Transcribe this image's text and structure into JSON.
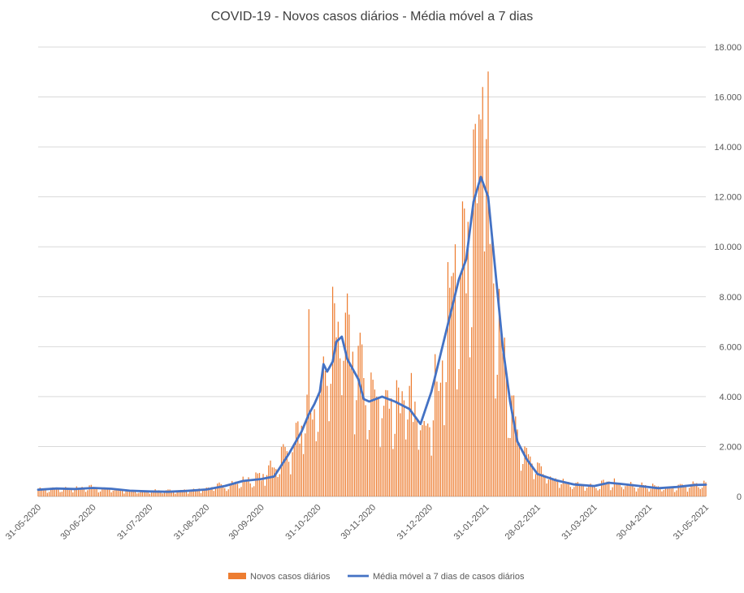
{
  "chart_data": {
    "type": "bar",
    "title": "COVID-19 - Novos casos diários - Média móvel a 7 dias",
    "xlabel": "",
    "ylabel": "",
    "ylim": [
      0,
      18000
    ],
    "y_ticks": [
      "0",
      "2.000",
      "4.000",
      "6.000",
      "8.000",
      "10.000",
      "12.000",
      "14.000",
      "16.000",
      "18.000"
    ],
    "y_axis_side": "right",
    "x_ticks": [
      "31-05-2020",
      "30-06-2020",
      "31-07-2020",
      "31-08-2020",
      "30-09-2020",
      "31-10-2020",
      "30-11-2020",
      "31-12-2020",
      "31-01-2021",
      "28-02-2021",
      "31-03-2021",
      "30-04-2021",
      "31-05-2021"
    ],
    "x_range": [
      "2020-05-31",
      "2021-05-31"
    ],
    "grid": "horizontal",
    "legend": "bottom",
    "bar_color": "#ED7D31",
    "line_color": "#4472C4",
    "series": [
      {
        "name": "Novos casos diários",
        "type": "bar",
        "anchors": [
          [
            "2020-05-31",
            250
          ],
          [
            "2020-06-30",
            330
          ],
          [
            "2020-07-15",
            250
          ],
          [
            "2020-07-31",
            200
          ],
          [
            "2020-08-15",
            220
          ],
          [
            "2020-08-31",
            300
          ],
          [
            "2020-09-15",
            500
          ],
          [
            "2020-09-30",
            750
          ],
          [
            "2020-10-15",
            1800
          ],
          [
            "2020-10-31",
            3600
          ],
          [
            "2020-11-07",
            5500
          ],
          [
            "2020-11-12",
            6300
          ],
          [
            "2020-11-20",
            5300
          ],
          [
            "2020-11-30",
            3800
          ],
          [
            "2020-12-10",
            3800
          ],
          [
            "2020-12-20",
            3500
          ],
          [
            "2020-12-28",
            2900
          ],
          [
            "2021-01-05",
            4500
          ],
          [
            "2021-01-12",
            7500
          ],
          [
            "2021-01-20",
            9000
          ],
          [
            "2021-01-26",
            12300
          ],
          [
            "2021-01-30",
            12800
          ],
          [
            "2021-02-03",
            10500
          ],
          [
            "2021-02-08",
            6500
          ],
          [
            "2021-02-13",
            3200
          ],
          [
            "2021-02-20",
            1800
          ],
          [
            "2021-02-28",
            1000
          ],
          [
            "2021-03-10",
            600
          ],
          [
            "2021-03-20",
            450
          ],
          [
            "2021-03-31",
            380
          ],
          [
            "2021-04-08",
            550
          ],
          [
            "2021-04-20",
            450
          ],
          [
            "2021-04-30",
            380
          ],
          [
            "2021-05-10",
            320
          ],
          [
            "2021-05-20",
            420
          ],
          [
            "2021-05-31",
            480
          ]
        ],
        "peaks": [
          [
            "2020-10-26",
            7500
          ],
          [
            "2020-11-08",
            8400
          ],
          [
            "2020-11-11",
            7000
          ],
          [
            "2020-11-19",
            5800
          ],
          [
            "2021-01-14",
            10100
          ],
          [
            "2021-01-21",
            11000
          ],
          [
            "2021-01-24",
            14700
          ],
          [
            "2021-01-27",
            15300
          ],
          [
            "2021-01-29",
            16400
          ],
          [
            "2021-01-28",
            15100
          ]
        ]
      },
      {
        "name": "Média móvel a 7 dias de casos diários",
        "type": "line",
        "values": [
          [
            "2020-05-31",
            270
          ],
          [
            "2020-06-10",
            320
          ],
          [
            "2020-06-20",
            300
          ],
          [
            "2020-06-30",
            340
          ],
          [
            "2020-07-10",
            310
          ],
          [
            "2020-07-20",
            230
          ],
          [
            "2020-07-31",
            200
          ],
          [
            "2020-08-10",
            190
          ],
          [
            "2020-08-20",
            220
          ],
          [
            "2020-08-31",
            280
          ],
          [
            "2020-09-10",
            420
          ],
          [
            "2020-09-20",
            620
          ],
          [
            "2020-09-30",
            700
          ],
          [
            "2020-10-07",
            800
          ],
          [
            "2020-10-15",
            1700
          ],
          [
            "2020-10-22",
            2600
          ],
          [
            "2020-10-26",
            3300
          ],
          [
            "2020-10-29",
            3700
          ],
          [
            "2020-11-01",
            4200
          ],
          [
            "2020-11-03",
            5300
          ],
          [
            "2020-11-05",
            5000
          ],
          [
            "2020-11-08",
            5400
          ],
          [
            "2020-11-10",
            6200
          ],
          [
            "2020-11-13",
            6400
          ],
          [
            "2020-11-16",
            5500
          ],
          [
            "2020-11-22",
            4700
          ],
          [
            "2020-11-25",
            3900
          ],
          [
            "2020-11-28",
            3800
          ],
          [
            "2020-12-05",
            4000
          ],
          [
            "2020-12-12",
            3800
          ],
          [
            "2020-12-20",
            3500
          ],
          [
            "2020-12-26",
            2900
          ],
          [
            "2021-01-01",
            4200
          ],
          [
            "2021-01-07",
            6000
          ],
          [
            "2021-01-12",
            7500
          ],
          [
            "2021-01-16",
            8700
          ],
          [
            "2021-01-20",
            9500
          ],
          [
            "2021-01-24",
            11800
          ],
          [
            "2021-01-28",
            12800
          ],
          [
            "2021-02-01",
            12000
          ],
          [
            "2021-02-05",
            9000
          ],
          [
            "2021-02-09",
            6000
          ],
          [
            "2021-02-13",
            3800
          ],
          [
            "2021-02-17",
            2200
          ],
          [
            "2021-02-22",
            1500
          ],
          [
            "2021-02-28",
            900
          ],
          [
            "2021-03-10",
            650
          ],
          [
            "2021-03-20",
            480
          ],
          [
            "2021-03-31",
            420
          ],
          [
            "2021-04-08",
            550
          ],
          [
            "2021-04-15",
            500
          ],
          [
            "2021-04-25",
            420
          ],
          [
            "2021-05-05",
            330
          ],
          [
            "2021-05-15",
            380
          ],
          [
            "2021-05-25",
            460
          ],
          [
            "2021-05-31",
            470
          ]
        ]
      }
    ]
  }
}
